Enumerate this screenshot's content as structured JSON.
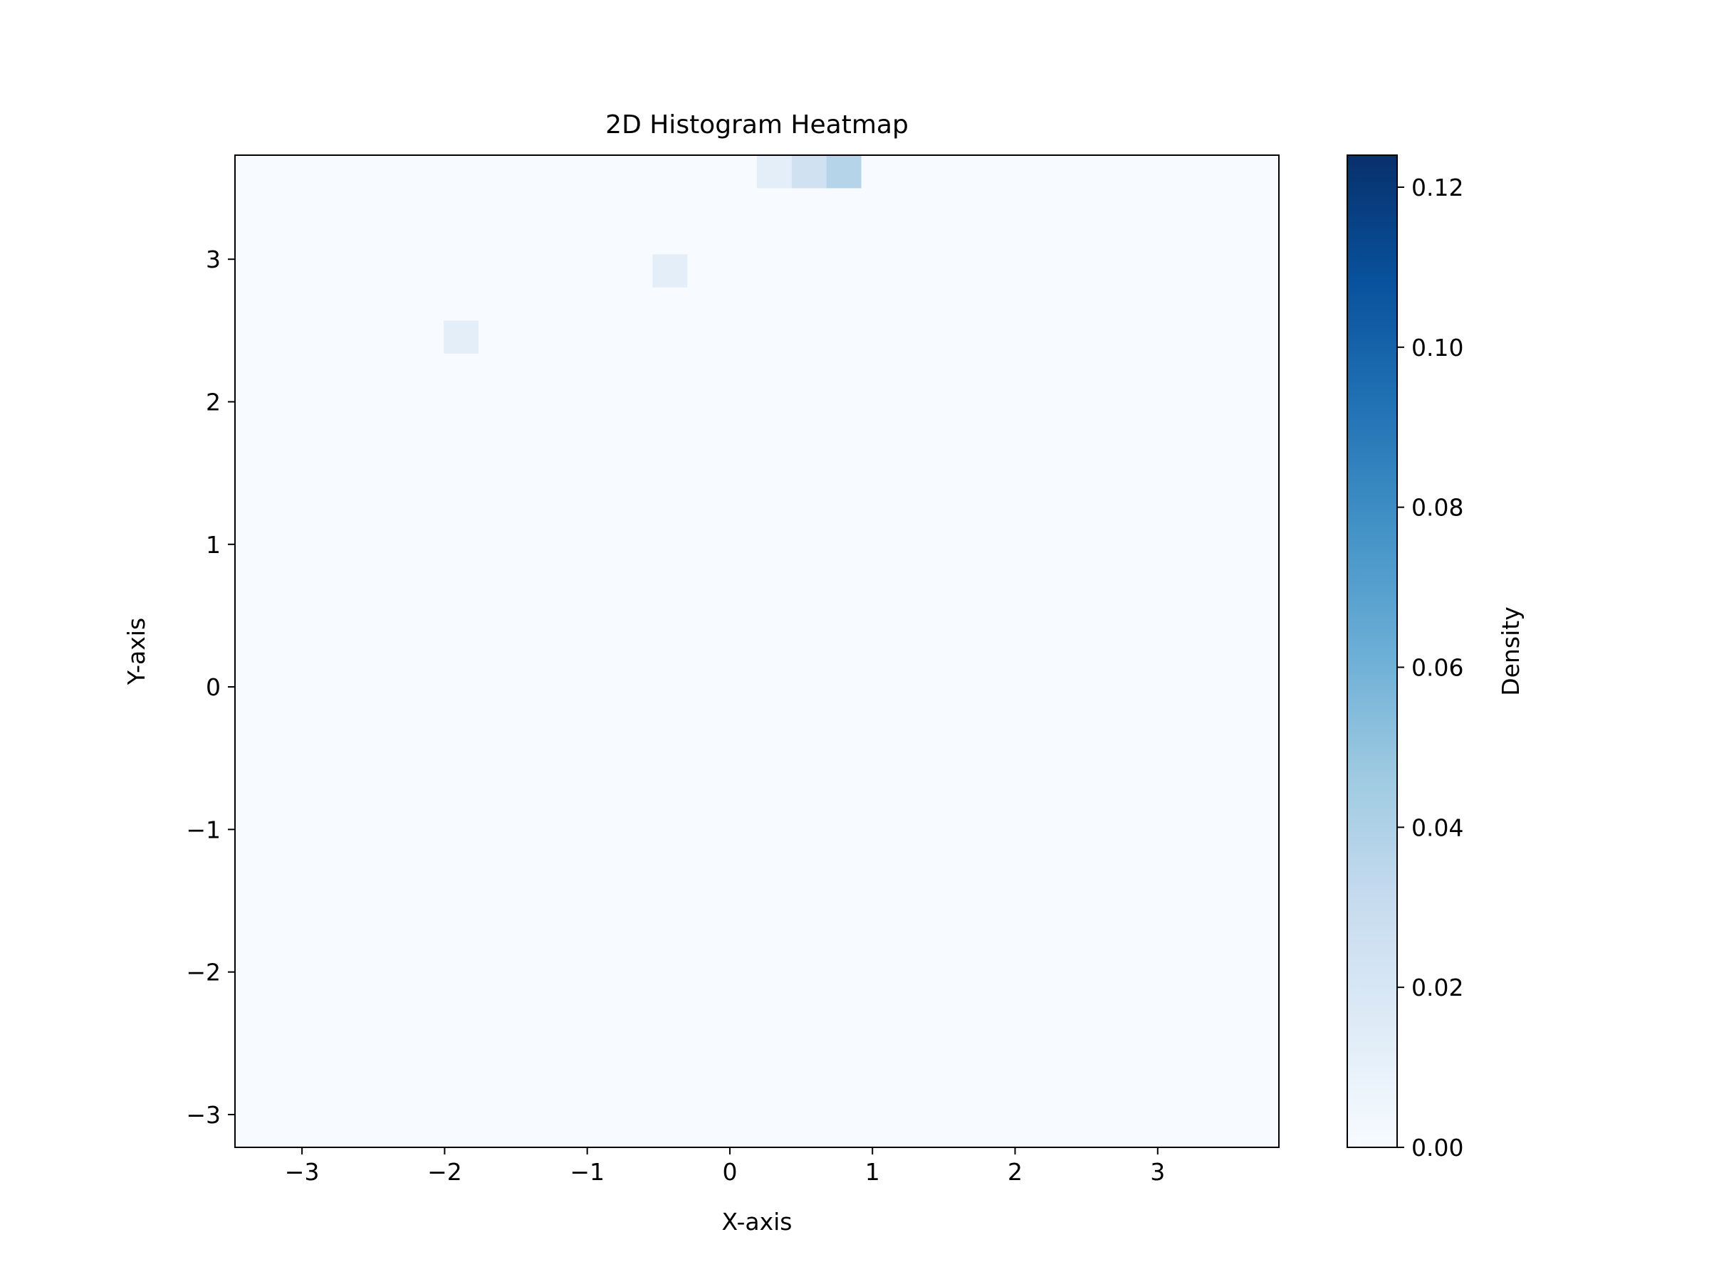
{
  "chart_data": {
    "type": "heatmap",
    "title": "2D Histogram Heatmap",
    "xlabel": "X-axis",
    "ylabel": "Y-axis",
    "colorbar_label": "Density",
    "colormap": "Blues",
    "colormap_stops": [
      "#f7fbff",
      "#deebf7",
      "#c6dbef",
      "#9ecae1",
      "#6baed6",
      "#4292c6",
      "#2171b5",
      "#08519c",
      "#08306b"
    ],
    "x_range": [
      -3.47,
      3.85
    ],
    "y_range": [
      -3.23,
      3.73
    ],
    "bins": 30,
    "x_ticks": [
      {
        "value": -3,
        "label": "−3"
      },
      {
        "value": -2,
        "label": "−2"
      },
      {
        "value": -1,
        "label": "−1"
      },
      {
        "value": 0,
        "label": "0"
      },
      {
        "value": 1,
        "label": "1"
      },
      {
        "value": 2,
        "label": "2"
      },
      {
        "value": 3,
        "label": "3"
      }
    ],
    "y_ticks": [
      {
        "value": -3,
        "label": "−3"
      },
      {
        "value": -2,
        "label": "−2"
      },
      {
        "value": -1,
        "label": "−1"
      },
      {
        "value": 0,
        "label": "0"
      },
      {
        "value": 1,
        "label": "1"
      },
      {
        "value": 2,
        "label": "2"
      },
      {
        "value": 3,
        "label": "3"
      }
    ],
    "colorbar_range": [
      0,
      0.124
    ],
    "colorbar_ticks": [
      {
        "value": 0.0,
        "label": "0.00"
      },
      {
        "value": 0.02,
        "label": "0.02"
      },
      {
        "value": 0.04,
        "label": "0.04"
      },
      {
        "value": 0.06,
        "label": "0.06"
      },
      {
        "value": 0.08,
        "label": "0.08"
      },
      {
        "value": 0.1,
        "label": "0.10"
      },
      {
        "value": 0.12,
        "label": "0.12"
      }
    ],
    "density_levels": [
      0,
      0.0124,
      0.0248,
      0.0372,
      0.0496,
      0.062,
      0.0744,
      0.0868,
      0.0992,
      0.1116,
      0.124
    ],
    "rows_top_to_bottom": [
      "000000000000000123000000000000",
      "000000000000000000000000000000",
      "000000000000000000000000000000",
      "000000000000100000000000000000",
      "000000000000000000000000000000",
      "000000100000000000000000000000",
      "000000000000000000000000000000",
      "000000000000000000000000000000",
      "000000000000000000000000000000",
      "000000000000000000000000000000",
      "000000000000000000000000000000",
      "000000000000000000000000000000",
      "000000000000000000000000000000",
      "000000000000000000000000000000",
      "000000000000000000000000000000",
      "000000000000000000000000000000",
      "000000000000000000000000000000",
      "000000000000000000000000000000",
      "000000000000000000000000000000",
      "000000000000000000000000000000",
      "000000000000000000000000000000",
      "000000000000000000000000000000",
      "000000000000000000000000000000",
      "000000000000000000000000000000",
      "000000000000000000000000000000",
      "000000000000000000000000000000",
      "000000000000000000000000000000",
      "000000000000000000000000000000",
      "000000000000000000000000000000",
      "000000000000000000000000000000"
    ],
    "grid": false
  }
}
